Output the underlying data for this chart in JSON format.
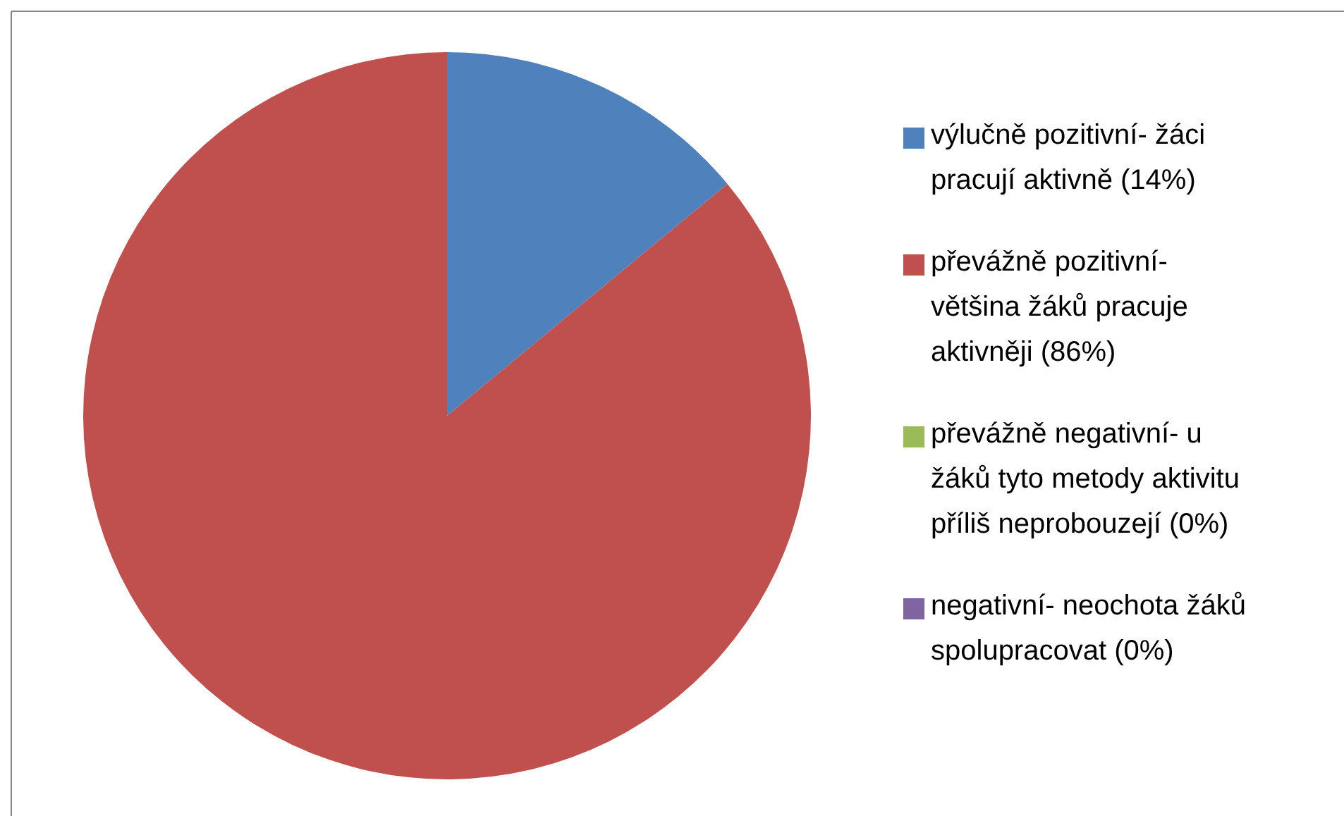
{
  "chart_data": {
    "type": "pie",
    "categories": [
      "výlučně pozitivní- žáci pracují aktivně (14%)",
      "převážně pozitivní- většina žáků pracuje aktivněji (86%)",
      "převážně negativní- u žáků tyto metody aktivitu příliš neprobouzejí (0%)",
      "negativní- neochota žáků spolupracovat (0%)"
    ],
    "values": [
      14,
      86,
      0,
      0
    ],
    "colors": [
      "#4f81bd",
      "#c0504d",
      "#9bbb59",
      "#8064a2"
    ],
    "legend": "right"
  }
}
